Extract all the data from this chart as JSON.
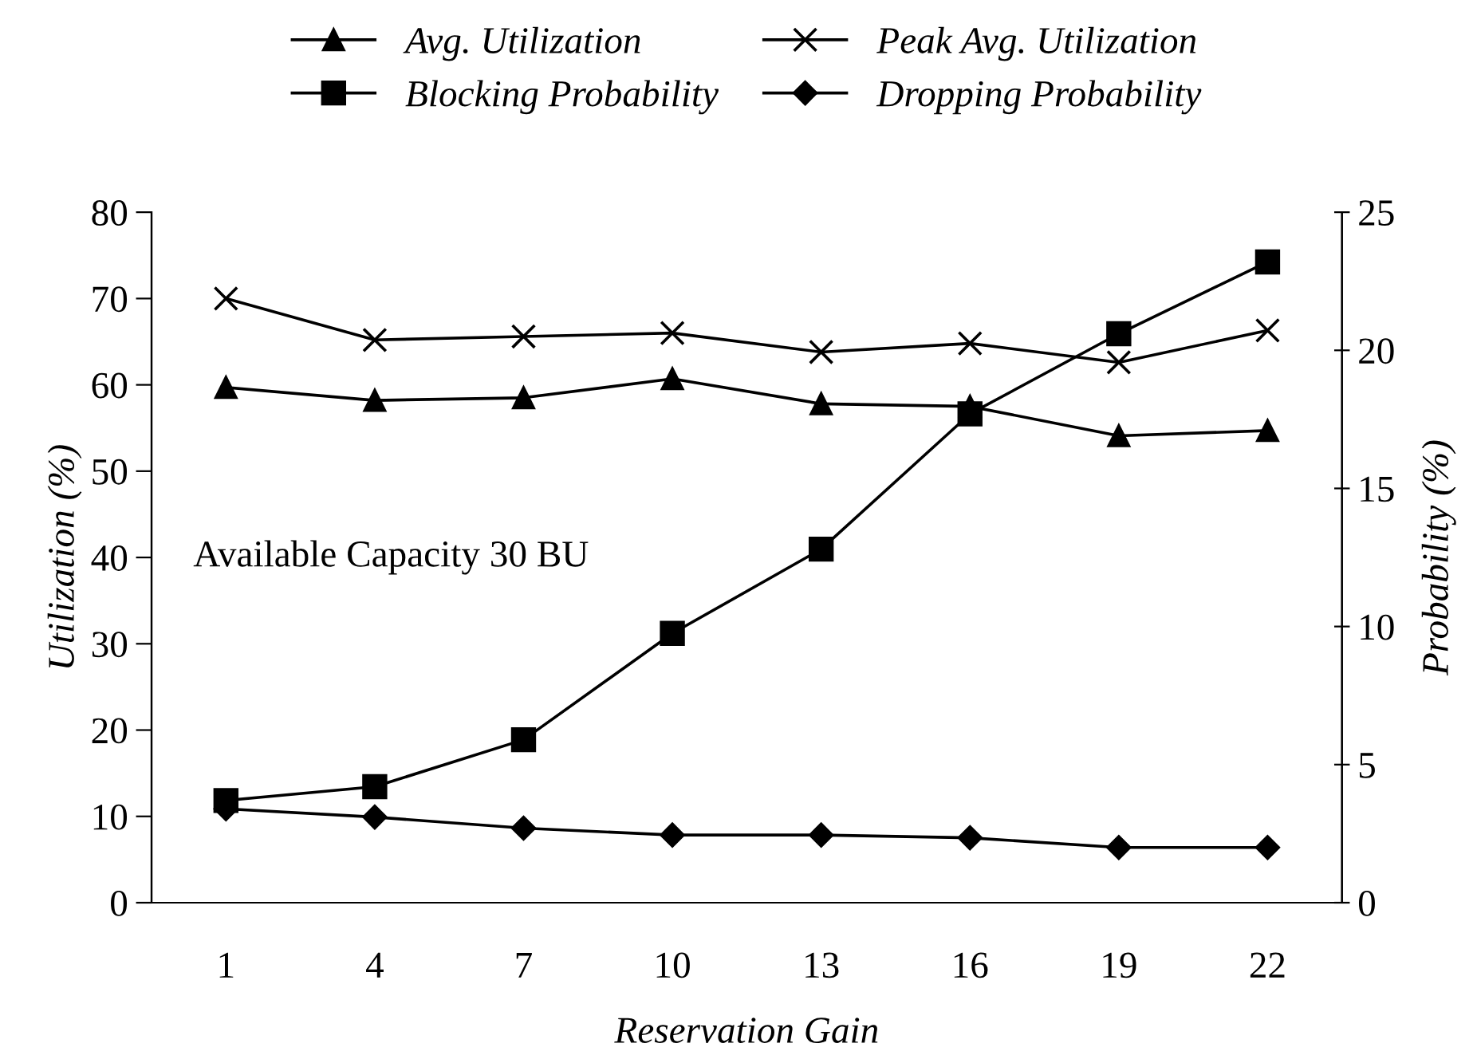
{
  "chart_data": {
    "type": "line",
    "xlabel": "Reservation Gain",
    "ylabel": "Utilization (%)",
    "y2label": "Probability (%)",
    "categories": [
      "1",
      "4",
      "7",
      "10",
      "13",
      "16",
      "19",
      "22"
    ],
    "series": [
      {
        "name": "Avg. Utilization",
        "color": "#000000",
        "marker": "triangle",
        "values": [
          59.7,
          58.2,
          58.5,
          60.7,
          57.8,
          57.5,
          54.1,
          54.7
        ]
      },
      {
        "name": "Peak Avg. Utilization",
        "color": "#000000",
        "marker": "cross",
        "values": [
          70,
          65.2,
          65.6,
          66,
          63.8,
          64.8,
          62.6,
          66.3
        ]
      },
      {
        "name": "Blocking Probability",
        "color": "#000000",
        "marker": "square",
        "axis": "y2",
        "values": [
          3.7,
          4.2,
          5.9,
          9.75,
          12.8,
          17.7,
          20.6,
          23.2
        ]
      },
      {
        "name": "Dropping Probability",
        "color": "#000000",
        "marker": "diamond",
        "axis": "y2",
        "values": [
          3.4,
          3.1,
          2.7,
          2.45,
          2.45,
          2.35,
          2.0,
          2.0
        ]
      }
    ],
    "ylim": [
      0,
      80
    ],
    "yticks": [
      0,
      10,
      20,
      30,
      40,
      50,
      60,
      70,
      80
    ],
    "y2lim": [
      0,
      25
    ],
    "y2ticks": [
      0,
      5,
      10,
      15,
      20,
      25
    ],
    "annotations": [
      "Available Capacity 30 BU"
    ],
    "legend": "top",
    "grid": false,
    "line_style": "solid"
  }
}
